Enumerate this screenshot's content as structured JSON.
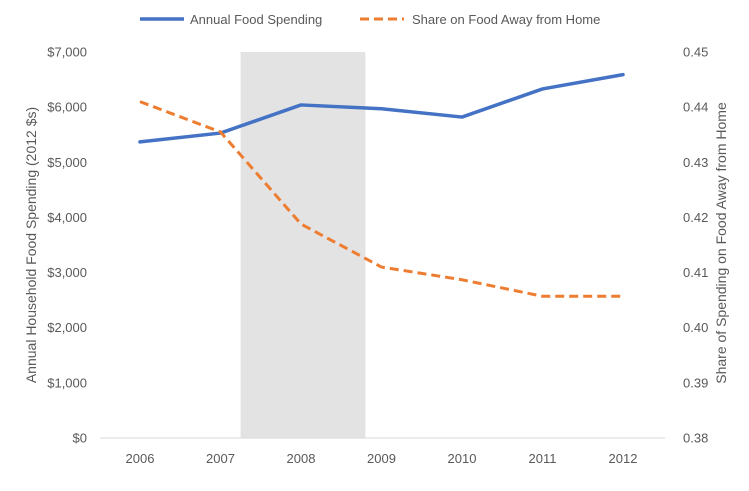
{
  "chart_data": {
    "type": "line",
    "title": "",
    "categories": [
      "2006",
      "2007",
      "2008",
      "2009",
      "2010",
      "2011",
      "2012"
    ],
    "x_positions": [
      2006,
      2007,
      2008,
      2009,
      2010,
      2011,
      2012
    ],
    "shaded_region": {
      "x_start": 2007.25,
      "x_end": 2008.8,
      "color": "#e3e3e3"
    },
    "y_left": {
      "label": "Annual Household Food Spending (2012 $s)",
      "ylim": [
        0,
        7000
      ],
      "ticks": [
        0,
        1000,
        2000,
        3000,
        4000,
        5000,
        6000,
        7000
      ],
      "tick_labels": [
        "$0",
        "$1,000",
        "$2,000",
        "$3,000",
        "$4,000",
        "$5,000",
        "$6,000",
        "$7,000"
      ]
    },
    "y_right": {
      "label": "Share of Spending on Food Away from Home",
      "ylim": [
        0.38,
        0.45
      ],
      "ticks": [
        0.38,
        0.39,
        0.4,
        0.41,
        0.42,
        0.43,
        0.44,
        0.45
      ],
      "tick_labels": [
        "0.38",
        "0.39",
        "0.40",
        "0.41",
        "0.42",
        "0.43",
        "0.44",
        "0.45"
      ]
    },
    "series": [
      {
        "name": "Annual Food Spending",
        "axis": "left",
        "style": "solid",
        "color": "#4472c4",
        "values": [
          5370,
          5530,
          6040,
          5970,
          5820,
          6330,
          6590
        ]
      },
      {
        "name": "Share on Food Away from Home",
        "axis": "right",
        "style": "dashed",
        "color": "#ed7d31",
        "values": [
          0.441,
          0.4355,
          0.4188,
          0.411,
          0.4087,
          0.4057,
          0.4057
        ]
      }
    ],
    "grid": false,
    "legend_position": "top-center"
  }
}
